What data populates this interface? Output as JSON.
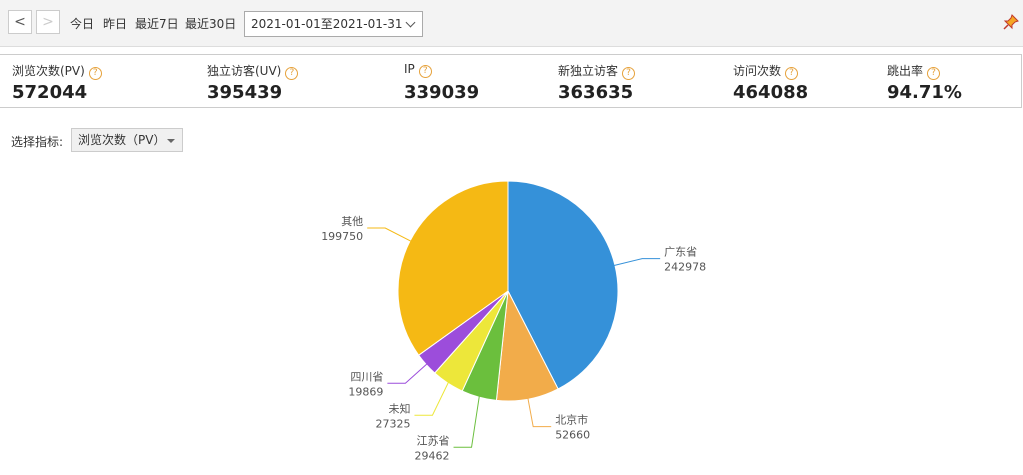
{
  "toolbar": {
    "quick_ranges": [
      "今日",
      "昨日",
      "最近7日",
      "最近30日"
    ],
    "date_range": "2021-01-01至2021-01-31"
  },
  "metrics": [
    {
      "label": "浏览次数(PV)",
      "value": "572044"
    },
    {
      "label": "独立访客(UV)",
      "value": "395439"
    },
    {
      "label": "IP",
      "value": "339039"
    },
    {
      "label": "新独立访客",
      "value": "363635"
    },
    {
      "label": "访问次数",
      "value": "464088"
    },
    {
      "label": "跳出率",
      "value": "94.71%"
    }
  ],
  "selector": {
    "label": "选择指标:",
    "value": "浏览次数（PV）"
  },
  "chart_data": {
    "type": "pie",
    "categories": [
      "广东省",
      "北京市",
      "江苏省",
      "未知",
      "四川省",
      "其他"
    ],
    "values": [
      242978,
      52660,
      29462,
      27325,
      19869,
      199750
    ],
    "colors": [
      "#3591d9",
      "#f2ac4a",
      "#6bbf3d",
      "#ede73a",
      "#9c4ddb",
      "#f5b914"
    ]
  }
}
